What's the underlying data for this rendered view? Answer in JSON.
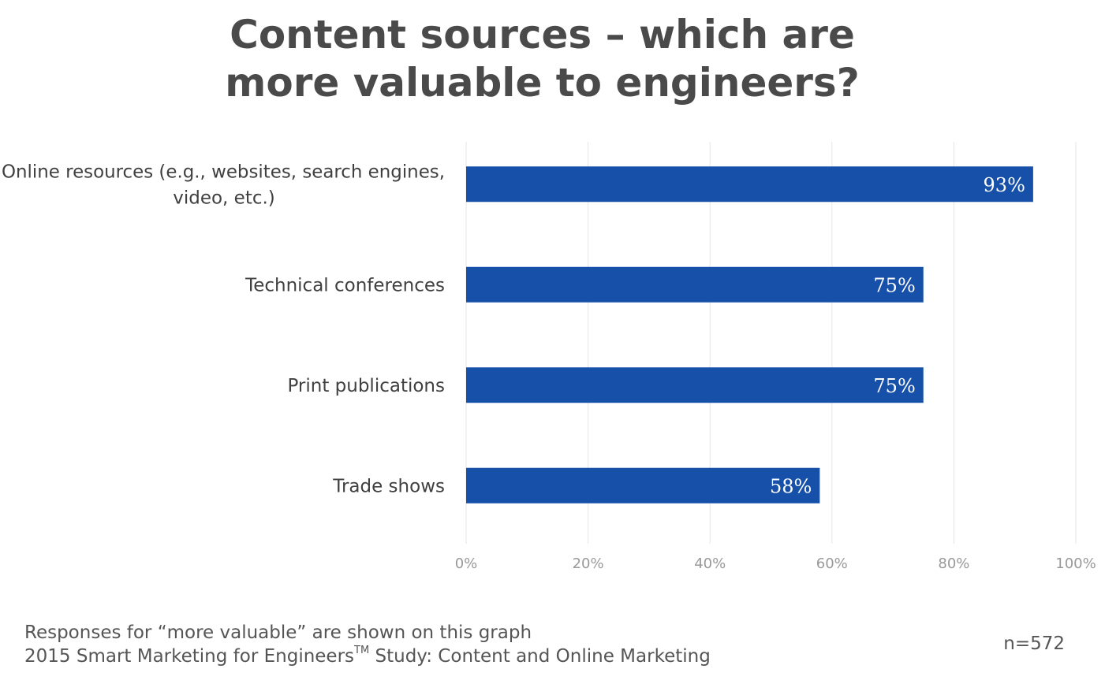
{
  "title": {
    "line1": "Content sources – which are",
    "line2": "more valuable to engineers?"
  },
  "chart_data": {
    "type": "bar",
    "orientation": "horizontal",
    "categories": [
      [
        "Online resources (e.g., websites, search engines,",
        "video, etc.)"
      ],
      [
        "Technical conferences"
      ],
      [
        "Print publications"
      ],
      [
        "Trade shows"
      ]
    ],
    "values": [
      93,
      75,
      75,
      58
    ],
    "value_labels": [
      "93%",
      "75%",
      "75%",
      "58%"
    ],
    "xticks": [
      "0%",
      "20%",
      "40%",
      "60%",
      "80%",
      "100%"
    ],
    "xlim": [
      0,
      100
    ],
    "grid": true,
    "bar_color": "#1750a8",
    "grid_color": "#e6e6e6",
    "tick_color": "#999999",
    "label_color": "#404040",
    "value_label_color": "#ffffff"
  },
  "footer": {
    "line1": "Responses for “more valuable” are shown on this graph",
    "line2_pre": "2015 Smart Marketing for Engineers",
    "line2_sup": "TM",
    "line2_post": " Study: Content and Online Marketing"
  },
  "sample_size": "n=572"
}
